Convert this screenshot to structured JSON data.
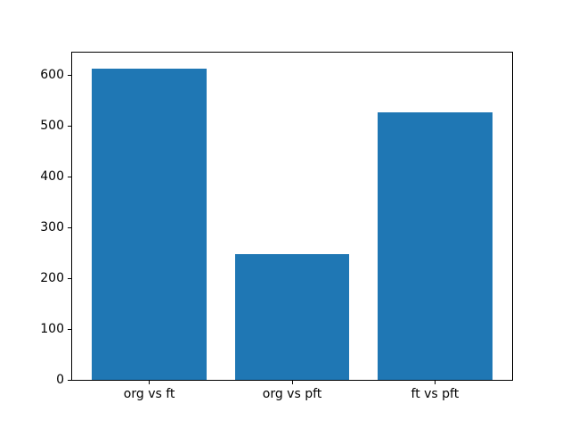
{
  "window": {
    "background_color": "#ffffff"
  },
  "chart_data": {
    "type": "bar",
    "title": "",
    "xlabel": "",
    "ylabel": "",
    "categories": [
      "org vs ft",
      "org vs pft",
      "ft vs pft"
    ],
    "values": [
      613,
      247,
      526
    ],
    "bar_color": "#1f77b4",
    "yticks": [
      0,
      100,
      200,
      300,
      400,
      500,
      600
    ],
    "ylim": [
      0,
      644
    ],
    "xlim": [
      -0.54,
      2.54
    ],
    "bar_width": 0.8,
    "grid": false,
    "legend": null,
    "spine_color": "#000000",
    "tick_label_color": "#000000"
  }
}
